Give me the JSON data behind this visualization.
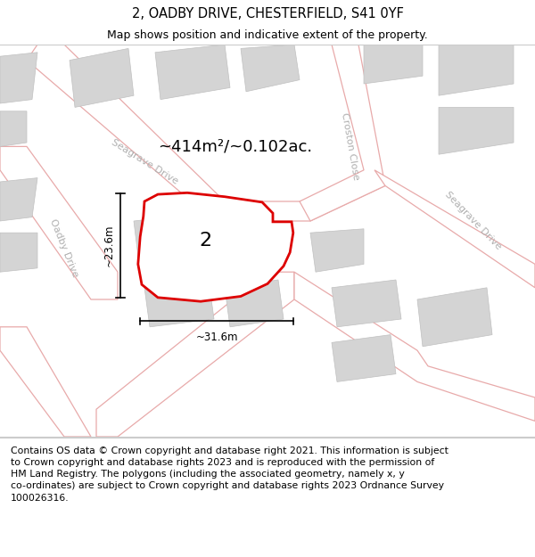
{
  "title": "2, OADBY DRIVE, CHESTERFIELD, S41 0YF",
  "subtitle": "Map shows position and indicative extent of the property.",
  "footer": "Contains OS data © Crown copyright and database right 2021. This information is subject\nto Crown copyright and database rights 2023 and is reproduced with the permission of\nHM Land Registry. The polygons (including the associated geometry, namely x, y\nco-ordinates) are subject to Crown copyright and database rights 2023 Ordnance Survey\n100026316.",
  "area_label": "~414m²/~0.102ac.",
  "width_label": "~31.6m",
  "height_label": "~23.6m",
  "plot_number": "2",
  "map_bg": "#f2f2f2",
  "road_fill": "#ffffff",
  "road_edge": "#e8aaaa",
  "plot_fill": "#ffffff",
  "plot_edge": "#dd0000",
  "building_fill": "#d4d4d4",
  "building_edge": "#c0c0c0",
  "street_label_color": "#b0b0b0",
  "title_fontsize": 10.5,
  "subtitle_fontsize": 9,
  "footer_fontsize": 7.8,
  "area_fontsize": 13,
  "dim_fontsize": 8.5,
  "plot_label_fontsize": 16,
  "street_fontsize": 8
}
